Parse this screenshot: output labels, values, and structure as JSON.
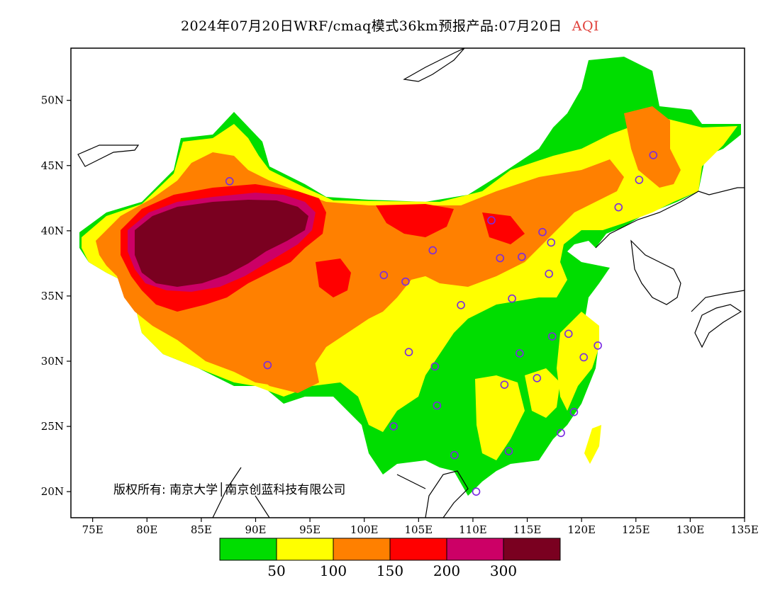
{
  "header": {
    "title": "2024年07月20日WRF/cmaq模式36km预报产品:07月20日",
    "variable": "AQI"
  },
  "map": {
    "extent": {
      "lon_min": 73,
      "lon_max": 135,
      "lat_min": 18,
      "lat_max": 54
    },
    "x_ticks": [
      {
        "lon": 75,
        "label": "75E"
      },
      {
        "lon": 80,
        "label": "80E"
      },
      {
        "lon": 85,
        "label": "85E"
      },
      {
        "lon": 90,
        "label": "90E"
      },
      {
        "lon": 95,
        "label": "95E"
      },
      {
        "lon": 100,
        "label": "100E"
      },
      {
        "lon": 105,
        "label": "105E"
      },
      {
        "lon": 110,
        "label": "110E"
      },
      {
        "lon": 115,
        "label": "115E"
      },
      {
        "lon": 120,
        "label": "120E"
      },
      {
        "lon": 125,
        "label": "125E"
      },
      {
        "lon": 130,
        "label": "130E"
      },
      {
        "lon": 135,
        "label": "135E"
      }
    ],
    "y_ticks": [
      {
        "lat": 20,
        "label": "20N"
      },
      {
        "lat": 25,
        "label": "25N"
      },
      {
        "lat": 30,
        "label": "30N"
      },
      {
        "lat": 35,
        "label": "35N"
      },
      {
        "lat": 40,
        "label": "40N"
      },
      {
        "lat": 45,
        "label": "45N"
      },
      {
        "lat": 50,
        "label": "50N"
      }
    ],
    "copyright": "版权所有: 南京大学│南京创蓝科技有限公司",
    "stations": [
      {
        "lon": 87.6,
        "lat": 43.8
      },
      {
        "lon": 91.1,
        "lat": 29.7
      },
      {
        "lon": 101.8,
        "lat": 36.6
      },
      {
        "lon": 103.8,
        "lat": 36.1
      },
      {
        "lon": 106.3,
        "lat": 38.5
      },
      {
        "lon": 111.7,
        "lat": 40.8
      },
      {
        "lon": 112.5,
        "lat": 37.9
      },
      {
        "lon": 114.5,
        "lat": 38.0
      },
      {
        "lon": 116.4,
        "lat": 39.9
      },
      {
        "lon": 117.2,
        "lat": 39.1
      },
      {
        "lon": 117.0,
        "lat": 36.7
      },
      {
        "lon": 113.6,
        "lat": 34.8
      },
      {
        "lon": 108.9,
        "lat": 34.3
      },
      {
        "lon": 104.1,
        "lat": 30.7
      },
      {
        "lon": 106.5,
        "lat": 29.6
      },
      {
        "lon": 106.7,
        "lat": 26.6
      },
      {
        "lon": 102.7,
        "lat": 25.0
      },
      {
        "lon": 108.3,
        "lat": 22.8
      },
      {
        "lon": 110.3,
        "lat": 20.0
      },
      {
        "lon": 113.3,
        "lat": 23.1
      },
      {
        "lon": 112.9,
        "lat": 28.2
      },
      {
        "lon": 114.3,
        "lat": 30.6
      },
      {
        "lon": 115.9,
        "lat": 28.7
      },
      {
        "lon": 117.3,
        "lat": 31.9
      },
      {
        "lon": 118.8,
        "lat": 32.1
      },
      {
        "lon": 120.2,
        "lat": 30.3
      },
      {
        "lon": 121.5,
        "lat": 31.2
      },
      {
        "lon": 119.3,
        "lat": 26.1
      },
      {
        "lon": 118.1,
        "lat": 24.5
      },
      {
        "lon": 123.4,
        "lat": 41.8
      },
      {
        "lon": 125.3,
        "lat": 43.9
      },
      {
        "lon": 126.6,
        "lat": 45.8
      }
    ]
  },
  "legend": {
    "colors": [
      "#00dd00",
      "#ffff00",
      "#ff8000",
      "#ff0000",
      "#cc0066",
      "#7a0020"
    ],
    "labels": [
      "50",
      "100",
      "150",
      "200",
      "300"
    ]
  }
}
